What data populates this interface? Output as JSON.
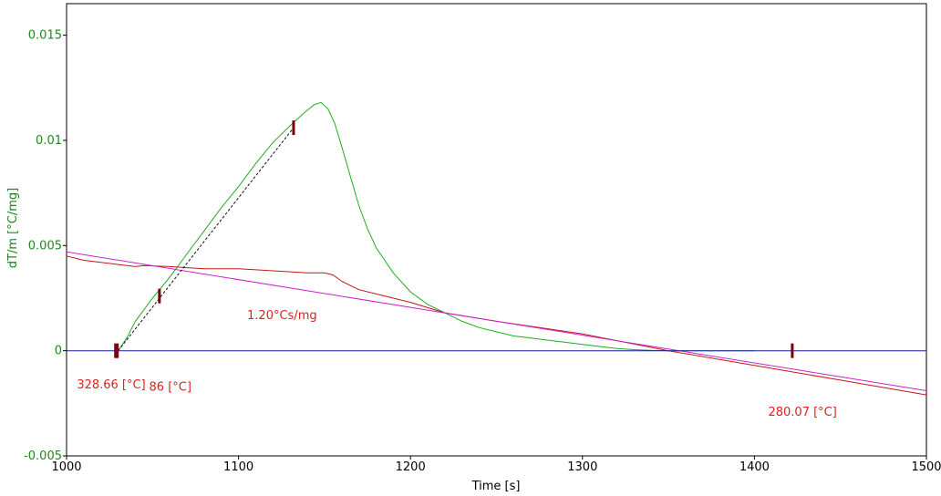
{
  "chart_data": {
    "type": "line",
    "xlabel": "Time [s]",
    "ylabel": "dT/m  [°C/mg]",
    "xlim": [
      1000,
      1500
    ],
    "ylim": [
      -0.005,
      0.0165
    ],
    "x_ticks": [
      1000,
      1100,
      1200,
      1300,
      1400,
      1500
    ],
    "x_tick_labels": [
      "1000",
      "1100",
      "1200",
      "1300",
      "1400",
      "1500"
    ],
    "y_ticks": [
      -0.005,
      0,
      0.005,
      0.01,
      0.015
    ],
    "y_tick_labels": [
      "-0.005",
      "0",
      "0.005",
      "0.01",
      "0.015"
    ],
    "grid": false,
    "series": [
      {
        "color": "#22aa22",
        "points": [
          [
            1030,
            0.0
          ],
          [
            1035,
            0.0006
          ],
          [
            1040,
            0.0014
          ],
          [
            1050,
            0.0025
          ],
          [
            1060,
            0.0035
          ],
          [
            1070,
            0.0046
          ],
          [
            1080,
            0.0057
          ],
          [
            1090,
            0.0068
          ],
          [
            1100,
            0.0078
          ],
          [
            1110,
            0.0089
          ],
          [
            1120,
            0.0099
          ],
          [
            1130,
            0.0107
          ],
          [
            1138,
            0.0113
          ],
          [
            1144,
            0.0117
          ],
          [
            1148,
            0.0118
          ],
          [
            1152,
            0.0115
          ],
          [
            1156,
            0.0108
          ],
          [
            1160,
            0.0097
          ],
          [
            1165,
            0.0083
          ],
          [
            1170,
            0.0069
          ],
          [
            1175,
            0.0058
          ],
          [
            1180,
            0.0049
          ],
          [
            1190,
            0.0037
          ],
          [
            1200,
            0.0028
          ],
          [
            1210,
            0.0022
          ],
          [
            1220,
            0.0018
          ],
          [
            1230,
            0.0014
          ],
          [
            1240,
            0.0011
          ],
          [
            1250,
            0.0009
          ],
          [
            1260,
            0.0007
          ],
          [
            1270,
            0.0006
          ],
          [
            1280,
            0.0005
          ],
          [
            1290,
            0.0004
          ],
          [
            1300,
            0.0003
          ],
          [
            1310,
            0.0002
          ],
          [
            1320,
            0.0001
          ],
          [
            1330,
            5e-05
          ],
          [
            1340,
            2e-05
          ],
          [
            1350,
            0.0
          ],
          [
            1400,
            0.0
          ]
        ]
      },
      {
        "color": "#c01818",
        "points": [
          [
            1000,
            0.0045
          ],
          [
            1010,
            0.0043
          ],
          [
            1020,
            0.0042
          ],
          [
            1030,
            0.0041
          ],
          [
            1040,
            0.004
          ],
          [
            1045,
            0.00405
          ],
          [
            1060,
            0.004
          ],
          [
            1080,
            0.0039
          ],
          [
            1100,
            0.0039
          ],
          [
            1120,
            0.0038
          ],
          [
            1140,
            0.0037
          ],
          [
            1150,
            0.0037
          ],
          [
            1155,
            0.0036
          ],
          [
            1160,
            0.0033
          ],
          [
            1170,
            0.0029
          ],
          [
            1180,
            0.0027
          ],
          [
            1200,
            0.0023
          ],
          [
            1220,
            0.0018
          ],
          [
            1250,
            0.0014
          ],
          [
            1300,
            0.0008
          ],
          [
            1350,
            0.0
          ],
          [
            1400,
            -0.0007
          ],
          [
            1450,
            -0.0014
          ],
          [
            1500,
            -0.0021
          ]
        ]
      },
      {
        "color": "#cc22cc",
        "points": [
          [
            1000,
            0.0047
          ],
          [
            1500,
            -0.0019
          ]
        ]
      },
      {
        "color": "#1a1a9a",
        "points": [
          [
            1000,
            0.0
          ],
          [
            1500,
            0.0
          ]
        ]
      },
      {
        "color": "#111111",
        "dashed": true,
        "points": [
          [
            1030,
            0.0
          ],
          [
            1133,
            0.0107
          ]
        ]
      }
    ],
    "markers": [
      {
        "x": 1029,
        "y": 0.0,
        "color": "#7a0010",
        "size": "large"
      },
      {
        "x": 1054,
        "y": 0.0026,
        "color": "#7a0010",
        "size": "small"
      },
      {
        "x": 1132,
        "y": 0.0106,
        "color": "#7a0010",
        "size": "small"
      },
      {
        "x": 1422,
        "y": 0.0,
        "color": "#7a0010",
        "size": "small"
      }
    ],
    "annotations": [
      {
        "text": "1.20°Cs/mg",
        "x": 1105,
        "y": 0.0015
      },
      {
        "text": "328.66 [°C]",
        "x": 1006,
        "y": -0.0018
      },
      {
        "text": "86 [°C]",
        "x": 1048,
        "y": -0.0019
      },
      {
        "text": "280.07 [°C]",
        "x": 1408,
        "y": -0.0031
      }
    ]
  }
}
